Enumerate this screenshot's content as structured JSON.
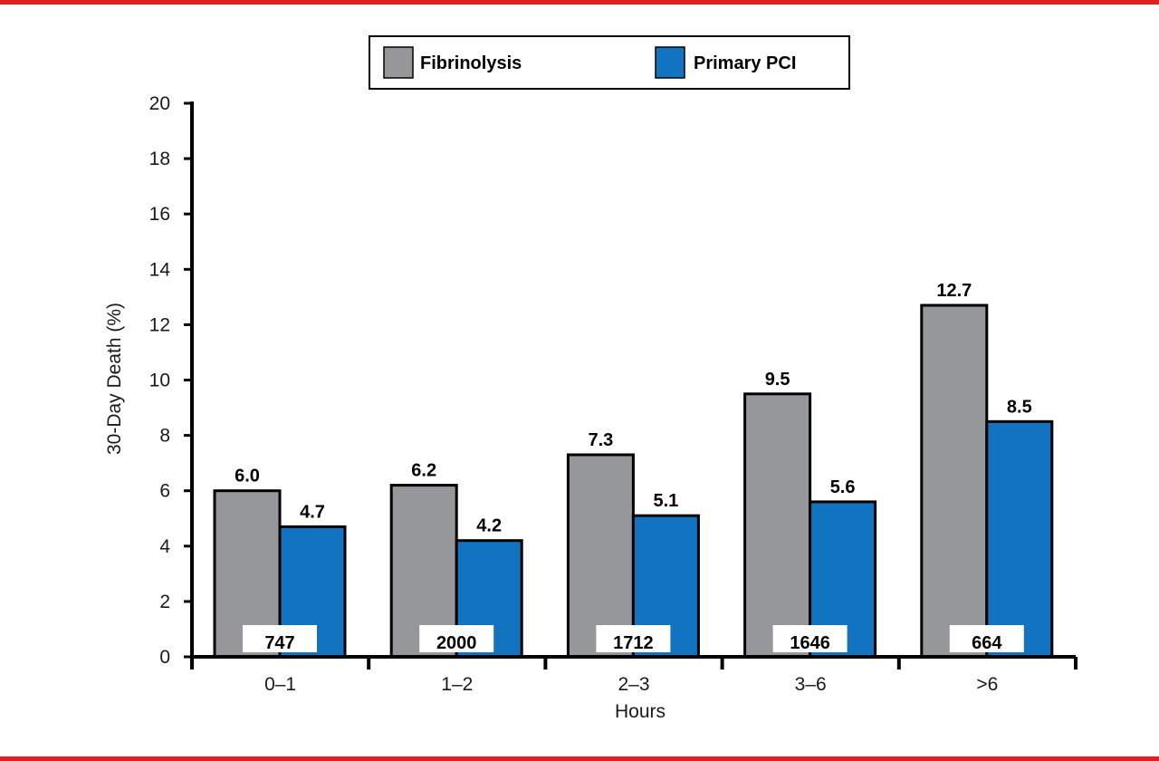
{
  "frame": {
    "border_color": "#e31e24"
  },
  "chart_data": {
    "type": "bar",
    "xlabel": "Hours",
    "ylabel": "30-Day Death (%)",
    "ylim": [
      0,
      20
    ],
    "y_ticks": [
      0,
      2,
      4,
      6,
      8,
      10,
      12,
      14,
      16,
      18,
      20
    ],
    "grid": false,
    "legend_position": "top-center",
    "categories": [
      "0–1",
      "1–2",
      "2–3",
      "3–6",
      ">6"
    ],
    "series": [
      {
        "name": "Fibrinolysis",
        "color": "#96979b",
        "values": [
          6.0,
          6.2,
          7.3,
          9.5,
          12.7
        ],
        "labels": [
          "6.0",
          "6.2",
          "7.3",
          "9.5",
          "12.7"
        ]
      },
      {
        "name": "Primary PCI",
        "color": "#1274c0",
        "values": [
          4.7,
          4.2,
          5.1,
          5.6,
          8.5
        ],
        "labels": [
          "4.7",
          "4.2",
          "5.1",
          "5.6",
          "8.5"
        ]
      }
    ],
    "n_annotations": [
      "747",
      "2000",
      "1712",
      "1646",
      "664"
    ]
  }
}
